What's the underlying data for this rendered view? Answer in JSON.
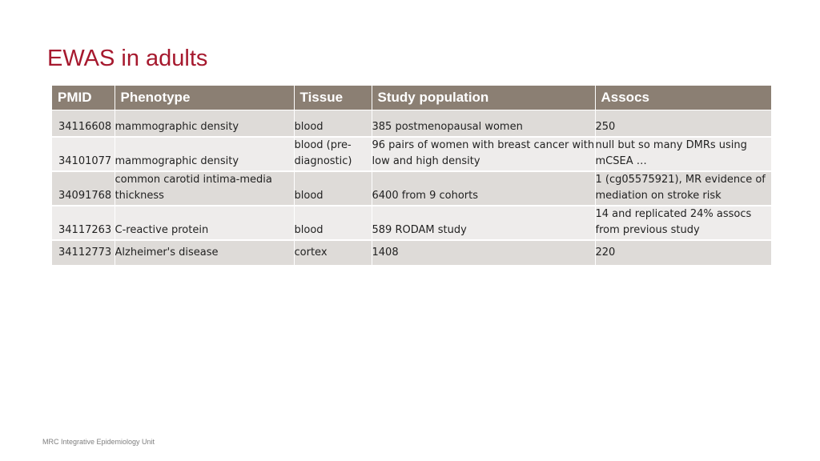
{
  "slide": {
    "title": "EWAS in adults",
    "footer": "MRC Integrative Epidemiology Unit"
  },
  "table": {
    "headers": [
      "PMID",
      "Phenotype",
      "Tissue",
      "Study population",
      "Assocs"
    ],
    "rows": [
      [
        "34116608",
        "mammographic density",
        "blood",
        "385 postmenopausal women",
        "250"
      ],
      [
        "34101077",
        "mammographic density",
        "blood (pre-diagnostic)",
        "96 pairs of women with breast cancer with low and high density",
        "null but so many DMRs using mCSEA …"
      ],
      [
        "34091768",
        "common carotid intima-media thickness",
        "blood",
        "6400 from 9 cohorts",
        "1 (cg05575921), MR evidence of mediation on stroke risk"
      ],
      [
        "34117263",
        "C-reactive protein",
        "blood",
        "589 RODAM study",
        "14 and replicated 24% assocs from previous study"
      ],
      [
        "34112773",
        "Alzheimer's disease",
        "cortex",
        "1408",
        "220"
      ]
    ]
  },
  "colors": {
    "title": "#a6192e",
    "header_bg": "#8b7f73",
    "row_dark": "#dedbd8",
    "row_light": "#eeeceb"
  }
}
